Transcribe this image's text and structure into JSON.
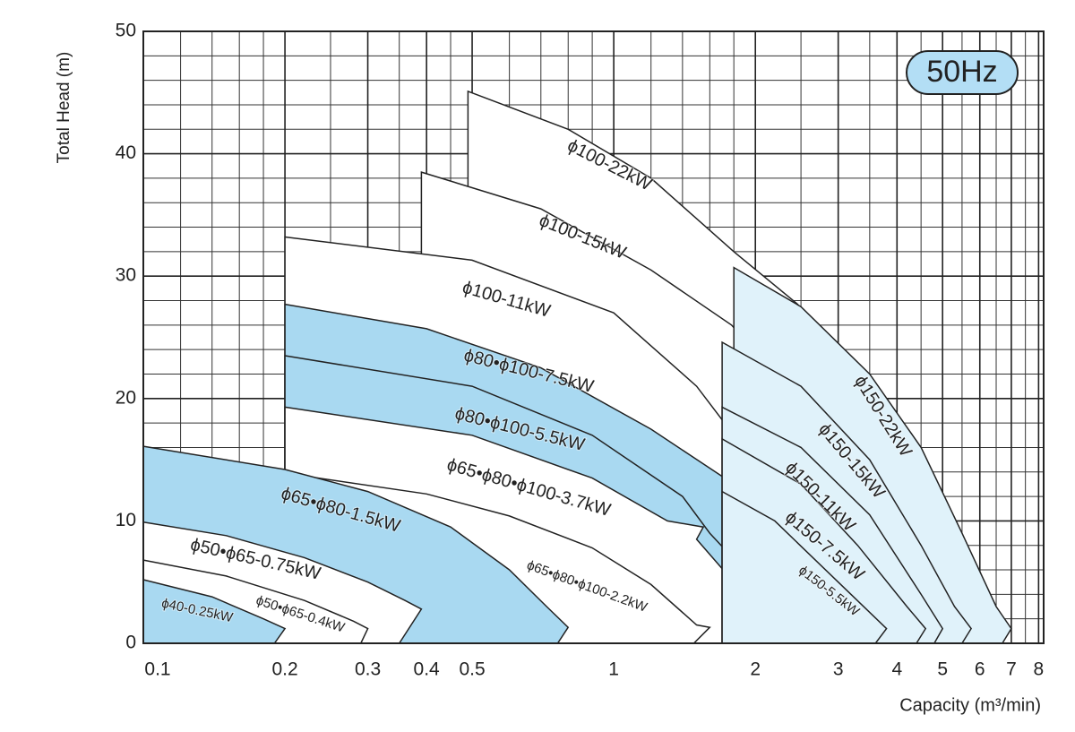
{
  "chart_data": {
    "type": "region",
    "badge": "50Hz",
    "y_label": "Total Head (m)",
    "x_label": "Capacity (m³/min)",
    "xscale": "log",
    "xlim": [
      0.1,
      8.2
    ],
    "ylim": [
      0,
      50
    ],
    "xticks": [
      0.1,
      0.2,
      0.3,
      0.4,
      0.5,
      1,
      2,
      3,
      4,
      5,
      6,
      7,
      8
    ],
    "yticks": [
      0,
      10,
      20,
      30,
      40,
      50
    ],
    "x_minor_grid": [
      0.12,
      0.14,
      0.16,
      0.18,
      0.25,
      0.35,
      0.45,
      0.6,
      0.7,
      0.8,
      0.9,
      1.2,
      1.4,
      1.6,
      1.8,
      2.5,
      3.5,
      4.5,
      5.5,
      6.5,
      7.5
    ],
    "y_minor_grid": [
      2,
      4,
      6,
      8,
      12,
      14,
      16,
      18,
      22,
      24,
      26,
      28,
      32,
      34,
      36,
      38,
      42,
      44,
      46,
      48
    ],
    "grid": true,
    "series": [
      {
        "name": "ϕ100-22kW",
        "color": "#ffffff",
        "x": [
          0.49,
          0.8,
          1.2,
          1.8,
          2.46,
          3.5,
          3.5,
          0.49
        ],
        "values": [
          45.1,
          42,
          38,
          32,
          27.7,
          20,
          0,
          0
        ]
      },
      {
        "name": "ϕ100-15kW",
        "color": "#ffffff",
        "x": [
          0.39,
          0.7,
          1.2,
          1.78,
          2.2,
          2.2,
          0.39
        ],
        "values": [
          38.5,
          35.5,
          30.5,
          26,
          22,
          0,
          0
        ]
      },
      {
        "name": "ϕ100-11kW",
        "color": "#ffffff",
        "x": [
          0.2,
          0.5,
          1,
          1.5,
          1.8,
          2.2,
          2.6,
          2.8,
          2.7,
          0.2
        ],
        "values": [
          33.2,
          31.3,
          27,
          21,
          17,
          10,
          3,
          1.2,
          0,
          0
        ]
      },
      {
        "name": "ϕ80•ϕ100-7.5kW",
        "color": "#a9d9f1",
        "x": [
          0.2,
          0.4,
          0.7,
          1.2,
          1.8,
          2.0,
          2.5,
          2.75,
          2.65,
          0.2
        ],
        "values": [
          27.7,
          25.7,
          22.5,
          17.5,
          13,
          9,
          3,
          1.2,
          0,
          0
        ]
      },
      {
        "name": "ϕ80•ϕ100-5.5kW",
        "color": "#a9d9f1",
        "x": [
          0.2,
          0.5,
          0.9,
          1.4,
          1.6,
          2.0,
          2.4,
          2.3,
          0.2
        ],
        "values": [
          23.5,
          21,
          17,
          12,
          9,
          5,
          1.2,
          0,
          0
        ]
      },
      {
        "name": "ϕ65•ϕ80•ϕ100-3.7kW",
        "color": "#ffffff",
        "x": [
          0.2,
          0.5,
          0.9,
          1.3,
          1.55,
          1.5,
          1.8,
          2.2,
          2.05,
          0.2
        ],
        "values": [
          19.3,
          17,
          13.5,
          10,
          9.5,
          8.5,
          5,
          1.2,
          0,
          0
        ]
      },
      {
        "name": "ϕ65•ϕ80•ϕ100-2.2kW",
        "color": "#ffffff",
        "x": [
          0.2,
          0.4,
          0.6,
          0.9,
          1.2,
          1.5,
          1.6,
          1.48,
          0.2
        ],
        "values": [
          13.9,
          12.2,
          10.4,
          7.8,
          4.8,
          1.5,
          1.3,
          0,
          0
        ]
      },
      {
        "name": "ϕ65•ϕ80-1.5kW",
        "color": "#a9d9f1",
        "x": [
          0.1,
          0.2,
          0.3,
          0.45,
          0.6,
          0.72,
          0.8,
          0.76,
          0.1
        ],
        "values": [
          16.1,
          14.2,
          12.4,
          9.5,
          6,
          3,
          1.3,
          0,
          0
        ]
      },
      {
        "name": "ϕ50•ϕ65-0.75kW",
        "color": "#ffffff",
        "x": [
          0.1,
          0.15,
          0.22,
          0.3,
          0.36,
          0.39,
          0.35,
          0.1
        ],
        "values": [
          9.9,
          8.8,
          7,
          5,
          3.5,
          2.8,
          0,
          0
        ]
      },
      {
        "name": "ϕ50•ϕ65-0.4kW",
        "color": "#ffffff",
        "x": [
          0.1,
          0.15,
          0.22,
          0.28,
          0.3,
          0.29,
          0.1
        ],
        "values": [
          6.8,
          5.5,
          3.5,
          1.8,
          1.2,
          0,
          0
        ]
      },
      {
        "name": "ϕ40-0.25kW",
        "color": "#a9d9f1",
        "x": [
          0.1,
          0.14,
          0.18,
          0.2,
          0.19,
          0.1
        ],
        "values": [
          5.2,
          3.8,
          2,
          1.2,
          0,
          0
        ]
      },
      {
        "name": "ϕ150-22kW",
        "color": "#e0f2fa",
        "x": [
          1.8,
          2.5,
          3.5,
          4.5,
          5.5,
          6.5,
          7,
          6.7,
          1.8
        ],
        "values": [
          30.7,
          27.5,
          22,
          16,
          9,
          3,
          1.2,
          0,
          0
        ]
      },
      {
        "name": "ϕ150-15kW",
        "color": "#e0f2fa",
        "x": [
          1.7,
          2.5,
          3.5,
          4.5,
          5.3,
          5.75,
          5.5,
          1.7
        ],
        "values": [
          24.6,
          21,
          15,
          8,
          3,
          1.2,
          0,
          0
        ]
      },
      {
        "name": "ϕ150-11kW",
        "color": "#e0f2fa",
        "x": [
          1.7,
          2.5,
          3.5,
          4.5,
          5,
          4.8,
          1.7
        ],
        "values": [
          19.3,
          16,
          10.5,
          4,
          1.2,
          0,
          0
        ]
      },
      {
        "name": "ϕ150-7.5kW",
        "color": "#e0f2fa",
        "x": [
          1.7,
          2.5,
          3.3,
          4.2,
          4.6,
          4.4,
          1.7
        ],
        "values": [
          16.7,
          13,
          8,
          3,
          1.2,
          0,
          0
        ]
      },
      {
        "name": "ϕ150-5.5kW",
        "color": "#e0f2fa",
        "x": [
          1.7,
          2.2,
          3,
          3.8,
          3.6,
          1.7
        ],
        "values": [
          12.4,
          10,
          5,
          1.2,
          0,
          0
        ]
      }
    ]
  }
}
